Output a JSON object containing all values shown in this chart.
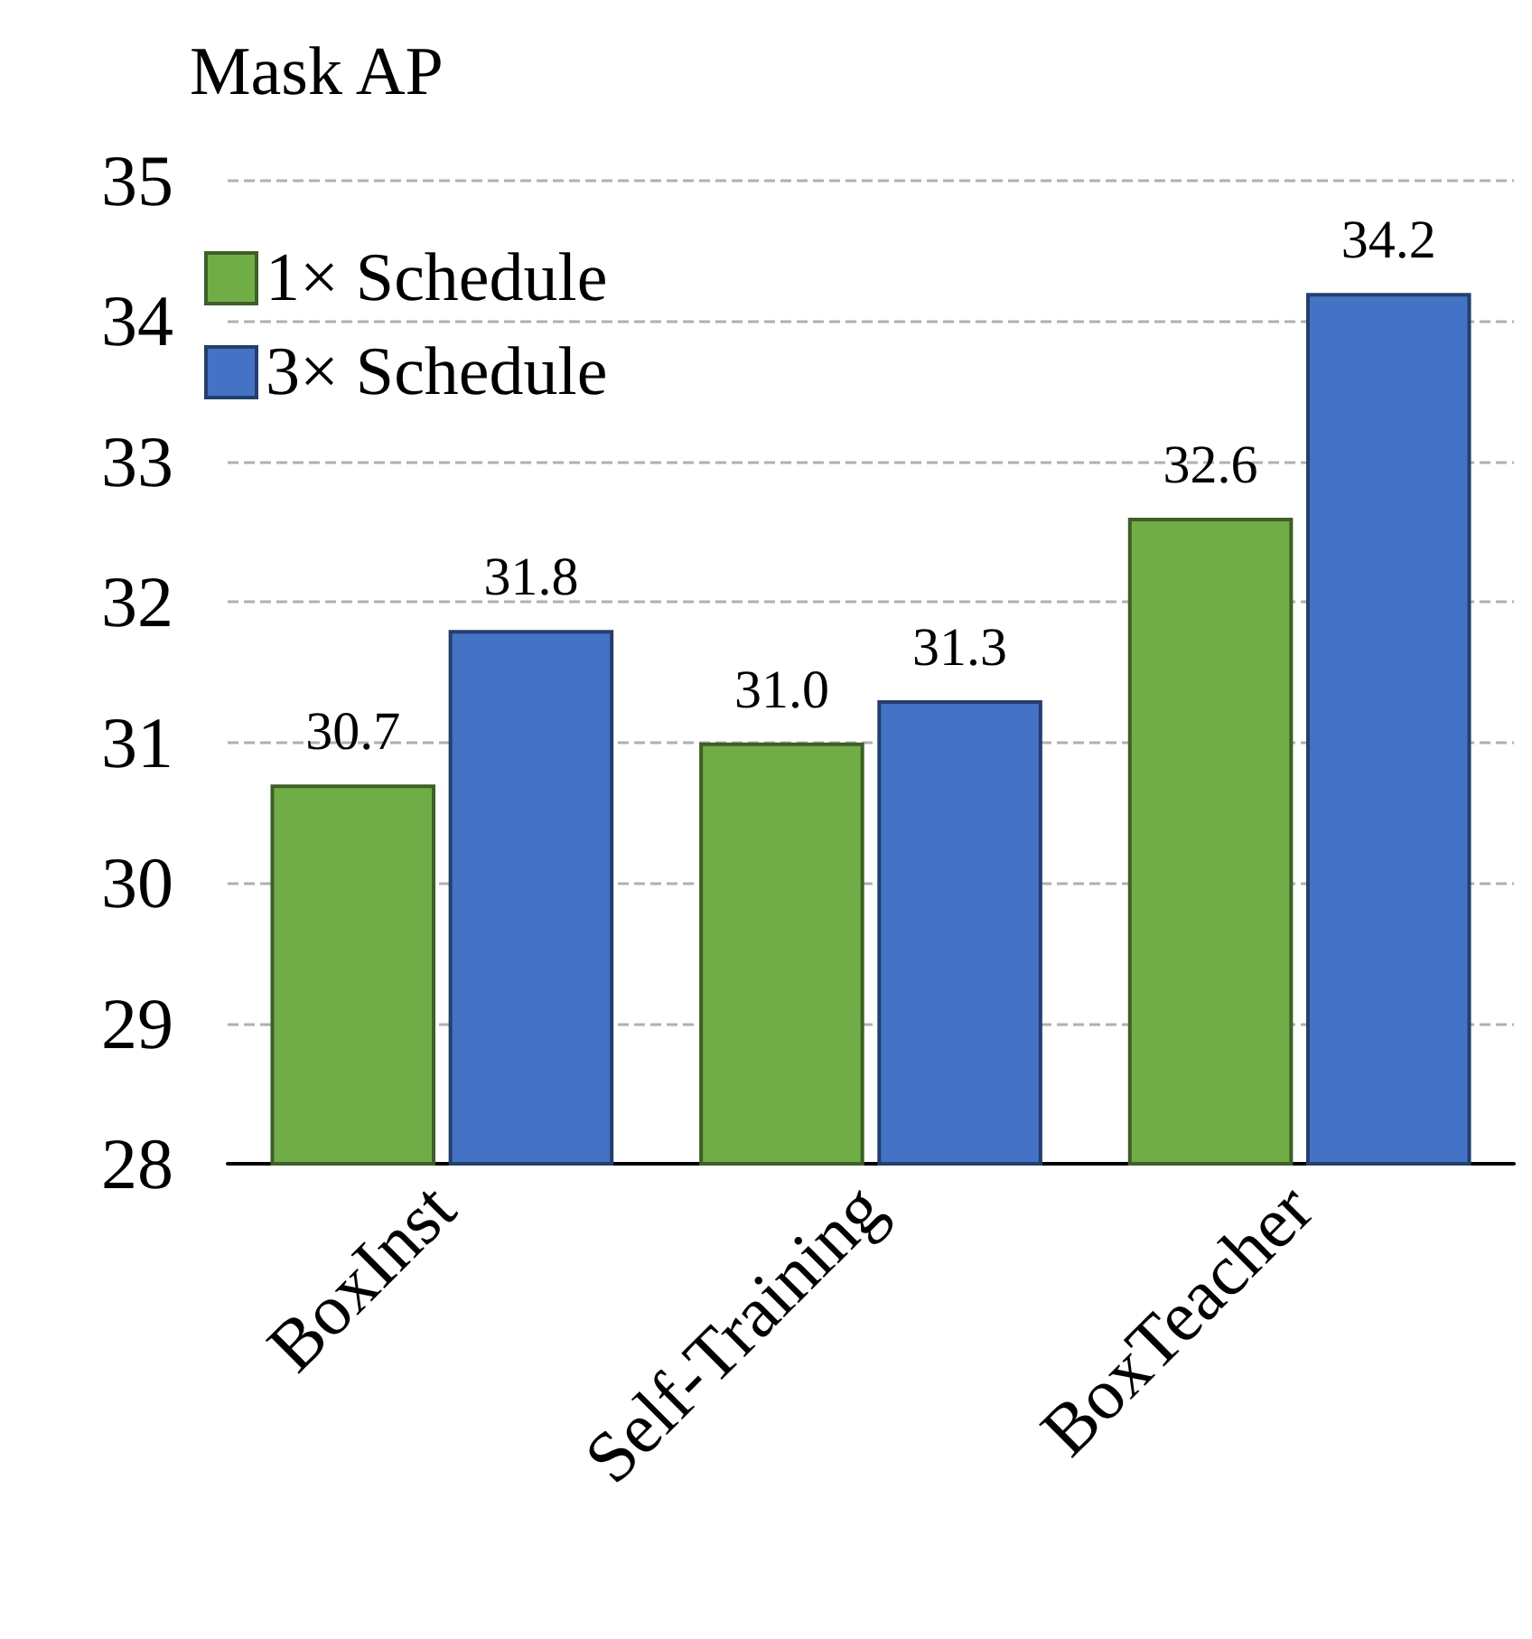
{
  "chart_data": {
    "type": "bar",
    "ylabel": "Mask AP",
    "categories": [
      "BoxInst",
      "Self-Training",
      "BoxTeacher"
    ],
    "series": [
      {
        "name": "1× Schedule",
        "color": "#70ad47",
        "values": [
          30.7,
          31.0,
          32.6
        ],
        "value_labels": [
          "30.7",
          "31.0",
          "32.6"
        ]
      },
      {
        "name": "3× Schedule",
        "color": "#4472c4",
        "values": [
          31.8,
          31.3,
          34.2
        ],
        "value_labels": [
          "31.8",
          "31.3",
          "34.2"
        ]
      }
    ],
    "ylim": [
      28,
      35
    ],
    "yticks": [
      28,
      29,
      30,
      31,
      32,
      33,
      34,
      35
    ],
    "grid": "y",
    "legend": "top left"
  }
}
